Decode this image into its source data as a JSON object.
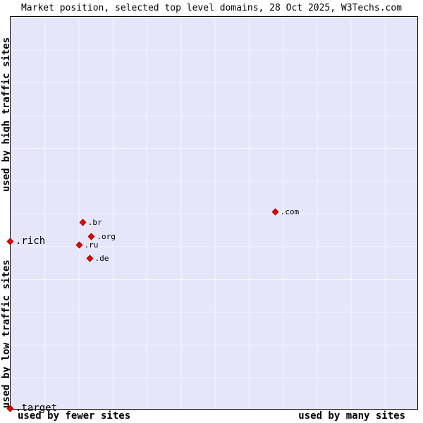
{
  "title": "Market position, selected top level domains, 28 Oct 2025, W3Techs.com",
  "axes": {
    "y_top": "used by high traffic sites",
    "y_bottom": "used by low traffic sites",
    "x_left": "used by fewer sites",
    "x_right": "used by many sites"
  },
  "colors": {
    "plot_bg": "#e6e6fa",
    "grid": "rgba(255,255,255,0.65)",
    "marker": "#ee0000",
    "marker_border": "#990000"
  },
  "chart_data": {
    "type": "scatter",
    "title": "Market position, selected top level domains, 28 Oct 2025, W3Techs.com",
    "x_axis_labels": [
      "used by fewer sites",
      "used by many sites"
    ],
    "y_axis_labels": [
      "used by low traffic sites",
      "used by high traffic sites"
    ],
    "legend_position": "none",
    "grid": true,
    "points": [
      {
        "label": ".com",
        "x_pct": 65.1,
        "y_pct": 49.8,
        "emphasized": false
      },
      {
        "label": ".br",
        "x_pct": 17.8,
        "y_pct": 52.5,
        "emphasized": false
      },
      {
        "label": ".org",
        "x_pct": 20.0,
        "y_pct": 56.1,
        "emphasized": false
      },
      {
        "label": ".ru",
        "x_pct": 16.9,
        "y_pct": 58.2,
        "emphasized": false
      },
      {
        "label": ".de",
        "x_pct": 19.5,
        "y_pct": 61.7,
        "emphasized": false
      },
      {
        "label": ".rich",
        "x_pct": 0.0,
        "y_pct": 57.3,
        "emphasized": true
      },
      {
        "label": ".target",
        "x_pct": 0.0,
        "y_pct": 100.0,
        "emphasized": true
      }
    ]
  }
}
